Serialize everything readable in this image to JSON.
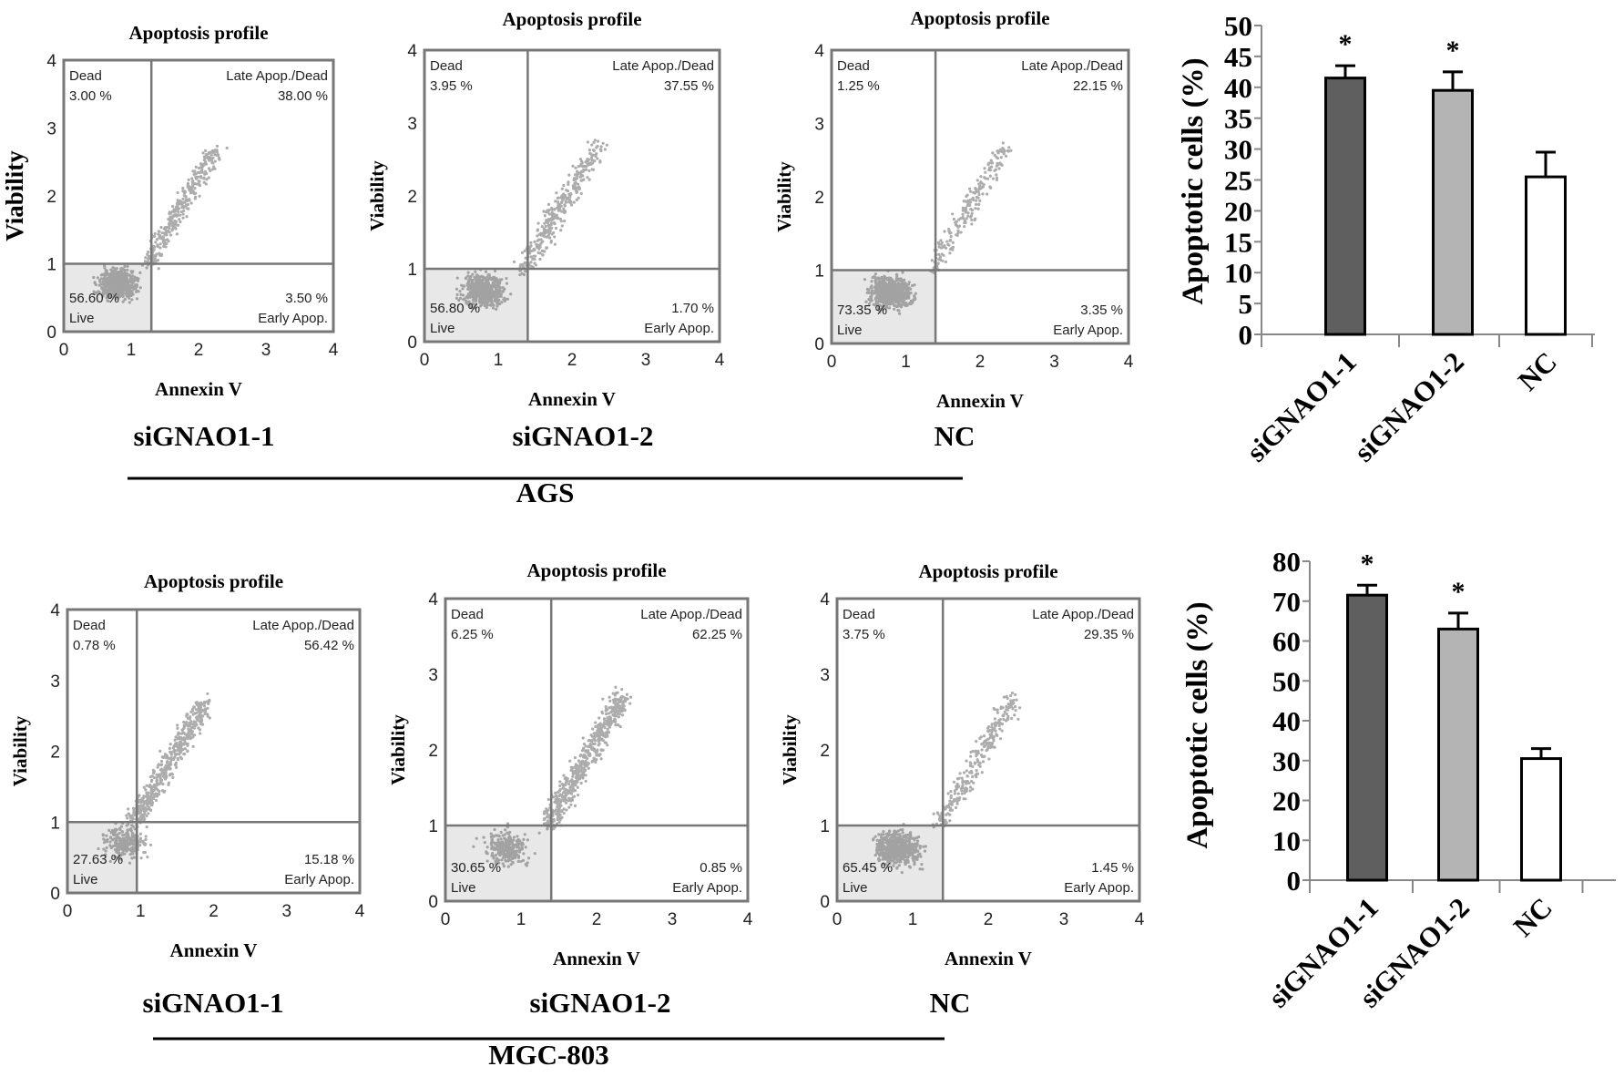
{
  "colors": {
    "bar_dark": "#5f5f5f",
    "bar_light": "#b4b4b4",
    "bar_nc": "#ffffff",
    "dots": "#6a6a6a",
    "gate": "#777777",
    "live_fill": "#e8e8e8"
  },
  "rows": [
    {
      "cell_line": "AGS",
      "panels": [
        {
          "title": "Apoptosis profile",
          "xlabel": "Annexin V",
          "ylabel": "Viability",
          "group": "siGNAO1-1",
          "gate_x": 1.3,
          "gate_y": 1.0,
          "dead_label": "Dead",
          "dead_pct": "3.00 %",
          "late_label": "Late Apop./Dead",
          "late_pct": "38.00 %",
          "live_label": "Live",
          "live_pct": "56.60 %",
          "early_label": "Early Apop.",
          "early_pct": "3.50 %"
        },
        {
          "title": "Apoptosis profile",
          "xlabel": "Annexin V",
          "ylabel": "Viability",
          "group": "siGNAO1-2",
          "gate_x": 1.4,
          "gate_y": 1.0,
          "dead_label": "Dead",
          "dead_pct": "3.95 %",
          "late_label": "Late Apop./Dead",
          "late_pct": "37.55 %",
          "live_label": "Live",
          "live_pct": "56.80 %",
          "early_label": "Early Apop.",
          "early_pct": "1.70 %"
        },
        {
          "title": "Apoptosis profile",
          "xlabel": "Annexin V",
          "ylabel": "Viability",
          "group": "NC",
          "gate_x": 1.4,
          "gate_y": 1.0,
          "dead_label": "Dead",
          "dead_pct": "1.25 %",
          "late_label": "Late Apop./Dead",
          "late_pct": "22.15 %",
          "live_label": "Live",
          "live_pct": "73.35 %",
          "early_label": "Early Apop.",
          "early_pct": "3.35 %"
        }
      ]
    },
    {
      "cell_line": "MGC-803",
      "panels": [
        {
          "title": "Apoptosis profile",
          "xlabel": "Annexin V",
          "ylabel": "Viability",
          "group": "siGNAO1-1",
          "gate_x": 0.95,
          "gate_y": 1.0,
          "dead_label": "Dead",
          "dead_pct": "0.78 %",
          "late_label": "Late Apop./Dead",
          "late_pct": "56.42 %",
          "live_label": "Live",
          "live_pct": "27.63 %",
          "early_label": "Early Apop.",
          "early_pct": "15.18 %"
        },
        {
          "title": "Apoptosis profile",
          "xlabel": "Annexin V",
          "ylabel": "Viability",
          "group": "siGNAO1-2",
          "gate_x": 1.4,
          "gate_y": 1.0,
          "dead_label": "Dead",
          "dead_pct": "6.25 %",
          "late_label": "Late Apop./Dead",
          "late_pct": "62.25 %",
          "live_label": "Live",
          "live_pct": "30.65 %",
          "early_label": "Early Apop.",
          "early_pct": "0.85 %"
        },
        {
          "title": "Apoptosis profile",
          "xlabel": "Annexin V",
          "ylabel": "Viability",
          "group": "NC",
          "gate_x": 1.4,
          "gate_y": 1.0,
          "dead_label": "Dead",
          "dead_pct": "3.75 %",
          "late_label": "Late Apop./Dead",
          "late_pct": "29.35 %",
          "live_label": "Live",
          "live_pct": "65.45 %",
          "early_label": "Early Apop.",
          "early_pct": "1.45 %"
        }
      ]
    }
  ],
  "flow_axis_ticks": [
    "0",
    "1",
    "2",
    "3",
    "4"
  ],
  "chart_data": [
    {
      "type": "bar",
      "categories": [
        "siGNAO1-1",
        "siGNAO1-2",
        "NC"
      ],
      "values": [
        41.5,
        39.5,
        25.5
      ],
      "errors": [
        2.0,
        3.0,
        4.0
      ],
      "significance": [
        "*",
        "*",
        ""
      ],
      "ylabel": "Apoptotic cells (%)",
      "ylim": [
        0,
        50
      ],
      "yticks": [
        "0",
        "5",
        "10",
        "15",
        "20",
        "25",
        "30",
        "35",
        "40",
        "45",
        "50"
      ],
      "grid": false
    },
    {
      "type": "bar",
      "categories": [
        "siGNAO1-1",
        "siGNAO1-2",
        "NC"
      ],
      "values": [
        71.5,
        63.0,
        30.5
      ],
      "errors": [
        2.5,
        4.0,
        2.5
      ],
      "significance": [
        "*",
        "*",
        ""
      ],
      "ylabel": "Apoptotic cells (%)",
      "ylim": [
        0,
        80
      ],
      "yticks": [
        "0",
        "10",
        "20",
        "30",
        "40",
        "50",
        "60",
        "70",
        "80"
      ],
      "grid": false
    }
  ]
}
